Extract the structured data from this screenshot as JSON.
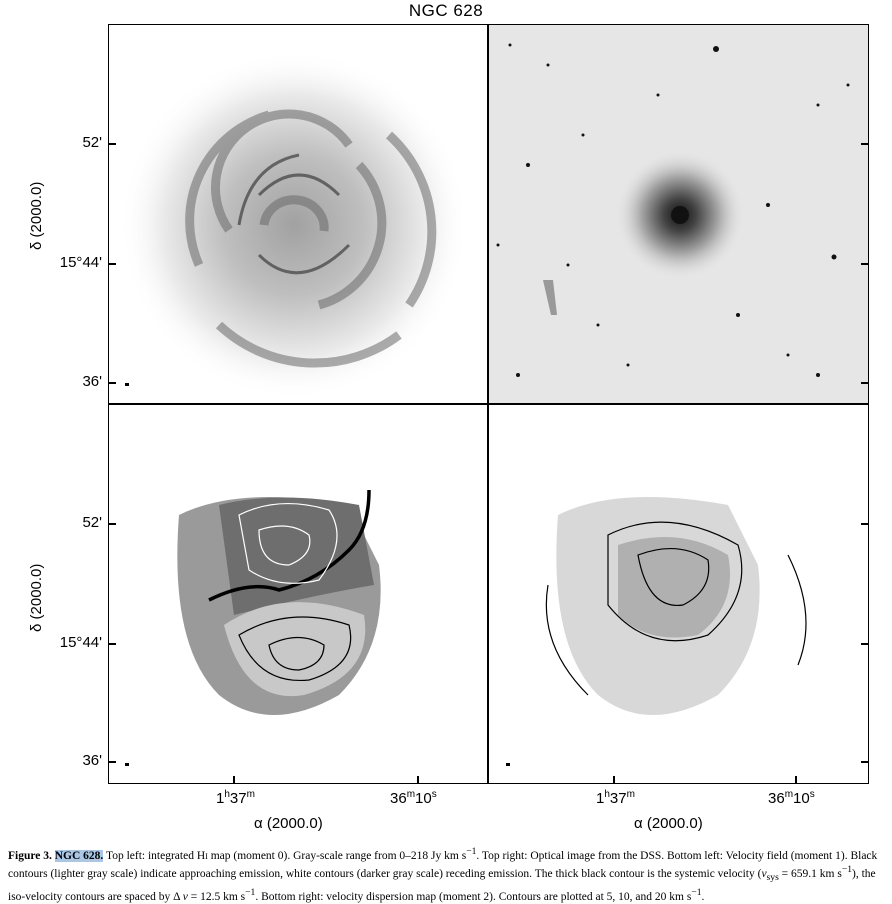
{
  "figure_title": "NGC 628",
  "axes": {
    "y_title": "δ (2000.0)",
    "y_ticks_top": [
      {
        "deg": "",
        "min": "52'"
      },
      {
        "deg": "15°",
        "min": "44'"
      },
      {
        "deg": "",
        "min": "36'"
      }
    ],
    "y_ticks_bottom": [
      {
        "deg": "",
        "min": "52'"
      },
      {
        "deg": "15°",
        "min": "44'"
      },
      {
        "deg": "",
        "min": "36'"
      }
    ],
    "x_title": "α (2000.0)",
    "x_ticks": [
      {
        "h": "1",
        "hu": "h",
        "m": "37",
        "mu": "m",
        "s": "",
        "su": ""
      },
      {
        "h": "",
        "hu": "",
        "m": "36",
        "mu": "m",
        "s": "10",
        "su": "s"
      }
    ]
  },
  "panels": {
    "top_left": "integrated HI map (moment 0)",
    "top_right": "Optical image from the DSS",
    "bottom_left": "Velocity field (moment 1)",
    "bottom_right": "velocity dispersion map (moment 2)"
  },
  "caption": {
    "label": "Figure 3.",
    "name": "NGC 628.",
    "text_1": " Top left: integrated H",
    "text_1b": "i",
    "text_2": " map (moment 0). Gray-scale range from 0–218 Jy km s",
    "text_3": ". Top right: Optical image from the DSS. Bottom left: Velocity field (moment 1). Black contours (lighter gray scale) indicate approaching emission, white contours (darker gray scale) receding emission. The thick black contour is the systemic velocity (",
    "vsys": "v",
    "vsys_sub": "sys",
    "text_4": " = 659.1  km s",
    "text_5": "), the iso-velocity contours are spaced by Δ ",
    "dv": "v",
    "text_6": " = 12.5 km s",
    "text_7": ". Bottom right: velocity dispersion map (moment 2). Contours are plotted at 5, 10, and 20 km s",
    "text_8": ".",
    "exp": "−1"
  }
}
